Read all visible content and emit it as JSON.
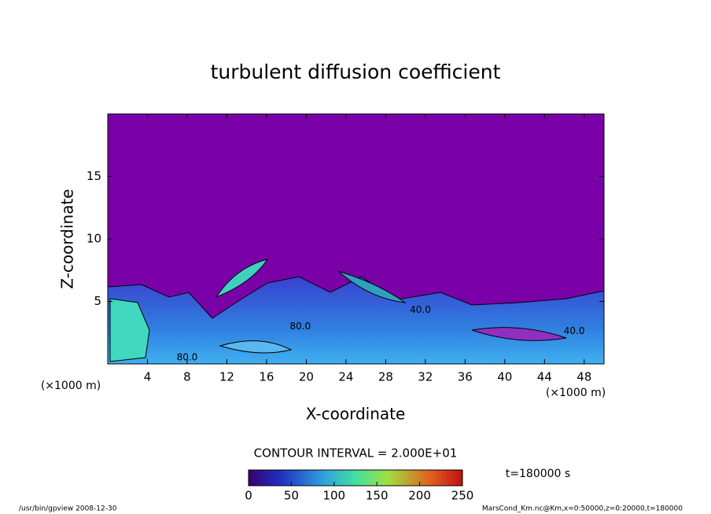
{
  "chart_data": {
    "type": "contour",
    "title": "turbulent diffusion coefficient",
    "x_label": "X-coordinate",
    "y_label": "Z-coordinate",
    "x_unit": "(×1000 m)",
    "x_unit_right": "(×1000 m)",
    "xlim": [
      0,
      50
    ],
    "ylim": [
      0,
      20
    ],
    "xticks": [
      4,
      8,
      12,
      16,
      20,
      24,
      28,
      32,
      36,
      40,
      44,
      48
    ],
    "yticks": [
      5,
      10,
      15
    ],
    "contour_interval": "CONTOUR INTERVAL = 2.000E+01",
    "contour_labels": [
      {
        "text": "40.0",
        "x": 31.5,
        "z": 4.3
      },
      {
        "text": "80.0",
        "x": 19.4,
        "z": 3.0
      },
      {
        "text": "40.0",
        "x": 47,
        "z": 2.6
      },
      {
        "text": "80.0",
        "x": 8.0,
        "z": 0.5
      }
    ],
    "colorbar": {
      "lim": [
        0,
        250
      ],
      "ticks": [
        0,
        50,
        100,
        150,
        200,
        250
      ]
    },
    "time_label": "t=180000 s",
    "footer_left": "/usr/bin/gpview  2008-12-30",
    "footer_right": "MarsCond_Km.nc@Km,x=0:50000,z=0:20000,t=180000"
  }
}
